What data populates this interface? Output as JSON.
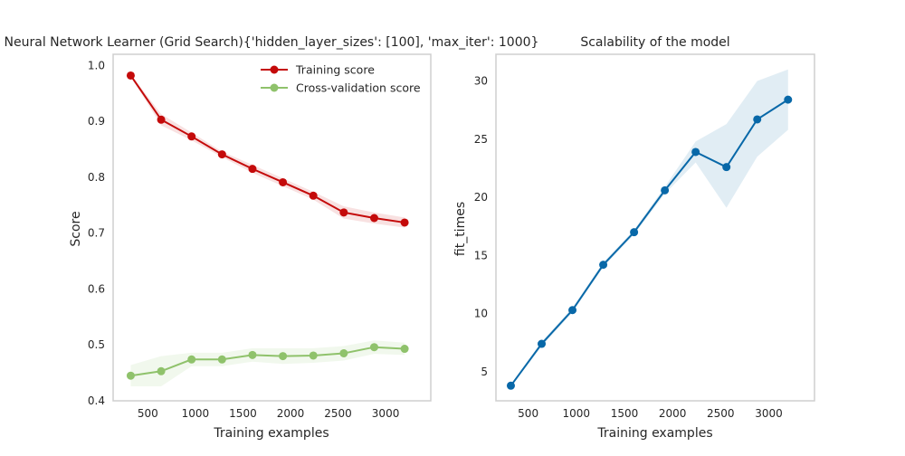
{
  "chart_data": [
    {
      "type": "line",
      "title": "Neural Network Learner (Grid Search){'hidden_layer_sizes': [100], 'max_iter': 1000}",
      "xlabel": "Training examples",
      "ylabel": "Score",
      "xlim": [
        135,
        3475
      ],
      "ylim": [
        0.4,
        1.02
      ],
      "xticks": [
        500,
        1000,
        1500,
        2000,
        2500,
        3000
      ],
      "yticks": [
        0.4,
        0.5,
        0.6,
        0.7,
        0.8,
        0.9,
        1.0
      ],
      "xtick_labels": [
        "500",
        "1000",
        "1500",
        "2000",
        "2500",
        "3000"
      ],
      "ytick_labels": [
        "0.4",
        "0.5",
        "0.6",
        "0.7",
        "0.8",
        "0.9",
        "1.0"
      ],
      "grid": false,
      "legend_position": "top-right",
      "x": [
        320,
        640,
        960,
        1280,
        1600,
        1920,
        2240,
        2560,
        2880,
        3200
      ],
      "series": [
        {
          "name": "Training score",
          "color": "#c40a0a",
          "values": [
            0.982,
            0.903,
            0.873,
            0.841,
            0.815,
            0.791,
            0.767,
            0.737,
            0.727,
            0.719
          ],
          "band_lower": [
            0.98,
            0.893,
            0.866,
            0.836,
            0.808,
            0.784,
            0.76,
            0.726,
            0.717,
            0.71
          ],
          "band_upper": [
            0.984,
            0.913,
            0.88,
            0.846,
            0.822,
            0.798,
            0.774,
            0.748,
            0.737,
            0.728
          ]
        },
        {
          "name": "Cross-validation score",
          "color": "#8fc26b",
          "values": [
            0.445,
            0.453,
            0.474,
            0.474,
            0.482,
            0.48,
            0.481,
            0.485,
            0.496,
            0.493
          ],
          "band_lower": [
            0.426,
            0.426,
            0.462,
            0.462,
            0.47,
            0.466,
            0.468,
            0.472,
            0.484,
            0.482
          ],
          "band_upper": [
            0.464,
            0.48,
            0.486,
            0.486,
            0.494,
            0.494,
            0.494,
            0.498,
            0.508,
            0.504
          ]
        }
      ]
    },
    {
      "type": "line",
      "title": "Scalability of the model",
      "xlabel": "Training examples",
      "ylabel": "fit_times",
      "xlim": [
        165,
        3475
      ],
      "ylim": [
        2.5,
        32.3
      ],
      "xticks": [
        500,
        1000,
        1500,
        2000,
        2500,
        3000
      ],
      "yticks": [
        5,
        10,
        15,
        20,
        25,
        30
      ],
      "xtick_labels": [
        "500",
        "1000",
        "1500",
        "2000",
        "2500",
        "3000"
      ],
      "ytick_labels": [
        "5",
        "10",
        "15",
        "20",
        "25",
        "30"
      ],
      "grid": false,
      "x": [
        320,
        640,
        960,
        1280,
        1600,
        1920,
        2240,
        2560,
        2880,
        3200
      ],
      "series": [
        {
          "name": "",
          "color": "#0868a8",
          "values": [
            3.8,
            7.4,
            10.3,
            14.2,
            17.0,
            20.6,
            23.9,
            22.6,
            26.7,
            28.4
          ],
          "band_lower": [
            3.7,
            7.2,
            10.1,
            14.0,
            16.8,
            20.3,
            23.0,
            19.1,
            23.5,
            25.8
          ],
          "band_upper": [
            3.9,
            7.6,
            10.5,
            14.4,
            17.2,
            20.9,
            24.8,
            26.3,
            30.0,
            31.0
          ]
        }
      ]
    }
  ]
}
